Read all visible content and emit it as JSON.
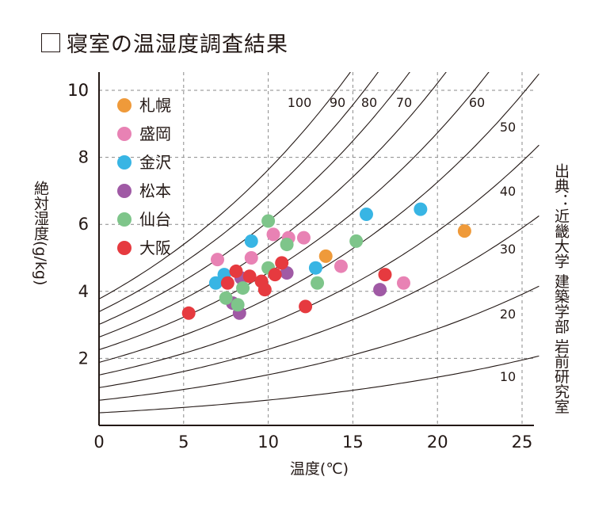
{
  "page": {
    "title": "寝室の温湿度調査結果"
  },
  "source": "出典：近畿大学 建築学部 岩前研究室",
  "colors": {
    "札幌": "#ef9a3a",
    "盛岡": "#e882b4",
    "金沢": "#38b5e4",
    "松本": "#a05aa5",
    "仙台": "#7ec58a",
    "大阪": "#e63a3f"
  },
  "chart_data": {
    "type": "scatter",
    "title": "寝室の温湿度調査結果",
    "xlabel": "温度(℃)",
    "ylabel": "絶対湿度(g/kg)",
    "xlim": [
      0,
      25.5
    ],
    "ylim": [
      0,
      10.5
    ],
    "xticks": [
      0,
      5,
      10,
      15,
      20,
      25
    ],
    "yticks": [
      2,
      4,
      6,
      8,
      10
    ],
    "grid": "dashed",
    "legend_position": "top-left",
    "rh_curves": [
      10,
      20,
      30,
      40,
      50,
      60,
      70,
      80,
      90,
      100
    ],
    "rh_labels": [
      "100",
      "90",
      "80",
      "70",
      "60",
      "50",
      "40",
      "30",
      "20",
      "10"
    ],
    "series": [
      {
        "name": "札幌",
        "points": [
          [
            13.4,
            5.05
          ],
          [
            21.6,
            5.8
          ]
        ]
      },
      {
        "name": "盛岡",
        "points": [
          [
            7.0,
            4.95
          ],
          [
            9.0,
            5.0
          ],
          [
            10.3,
            5.7
          ],
          [
            11.2,
            5.6
          ],
          [
            12.1,
            5.6
          ],
          [
            14.3,
            4.75
          ],
          [
            18.0,
            4.25
          ]
        ]
      },
      {
        "name": "金沢",
        "points": [
          [
            6.9,
            4.25
          ],
          [
            7.4,
            4.5
          ],
          [
            9.0,
            5.5
          ],
          [
            12.8,
            4.7
          ],
          [
            15.8,
            6.3
          ],
          [
            19.0,
            6.45
          ]
        ]
      },
      {
        "name": "松本",
        "points": [
          [
            7.9,
            3.65
          ],
          [
            8.3,
            3.35
          ],
          [
            8.4,
            4.4
          ],
          [
            11.1,
            4.55
          ],
          [
            16.6,
            4.05
          ]
        ]
      },
      {
        "name": "仙台",
        "points": [
          [
            7.5,
            3.8
          ],
          [
            8.2,
            3.6
          ],
          [
            8.5,
            4.1
          ],
          [
            10.0,
            4.7
          ],
          [
            10.0,
            6.1
          ],
          [
            11.1,
            5.4
          ],
          [
            12.9,
            4.25
          ],
          [
            15.2,
            5.5
          ]
        ]
      },
      {
        "name": "大阪",
        "points": [
          [
            5.3,
            3.35
          ],
          [
            7.6,
            4.25
          ],
          [
            8.1,
            4.6
          ],
          [
            8.9,
            4.45
          ],
          [
            9.6,
            4.3
          ],
          [
            9.8,
            4.05
          ],
          [
            10.4,
            4.5
          ],
          [
            10.8,
            4.85
          ],
          [
            12.2,
            3.55
          ],
          [
            16.9,
            4.5
          ]
        ]
      }
    ]
  }
}
